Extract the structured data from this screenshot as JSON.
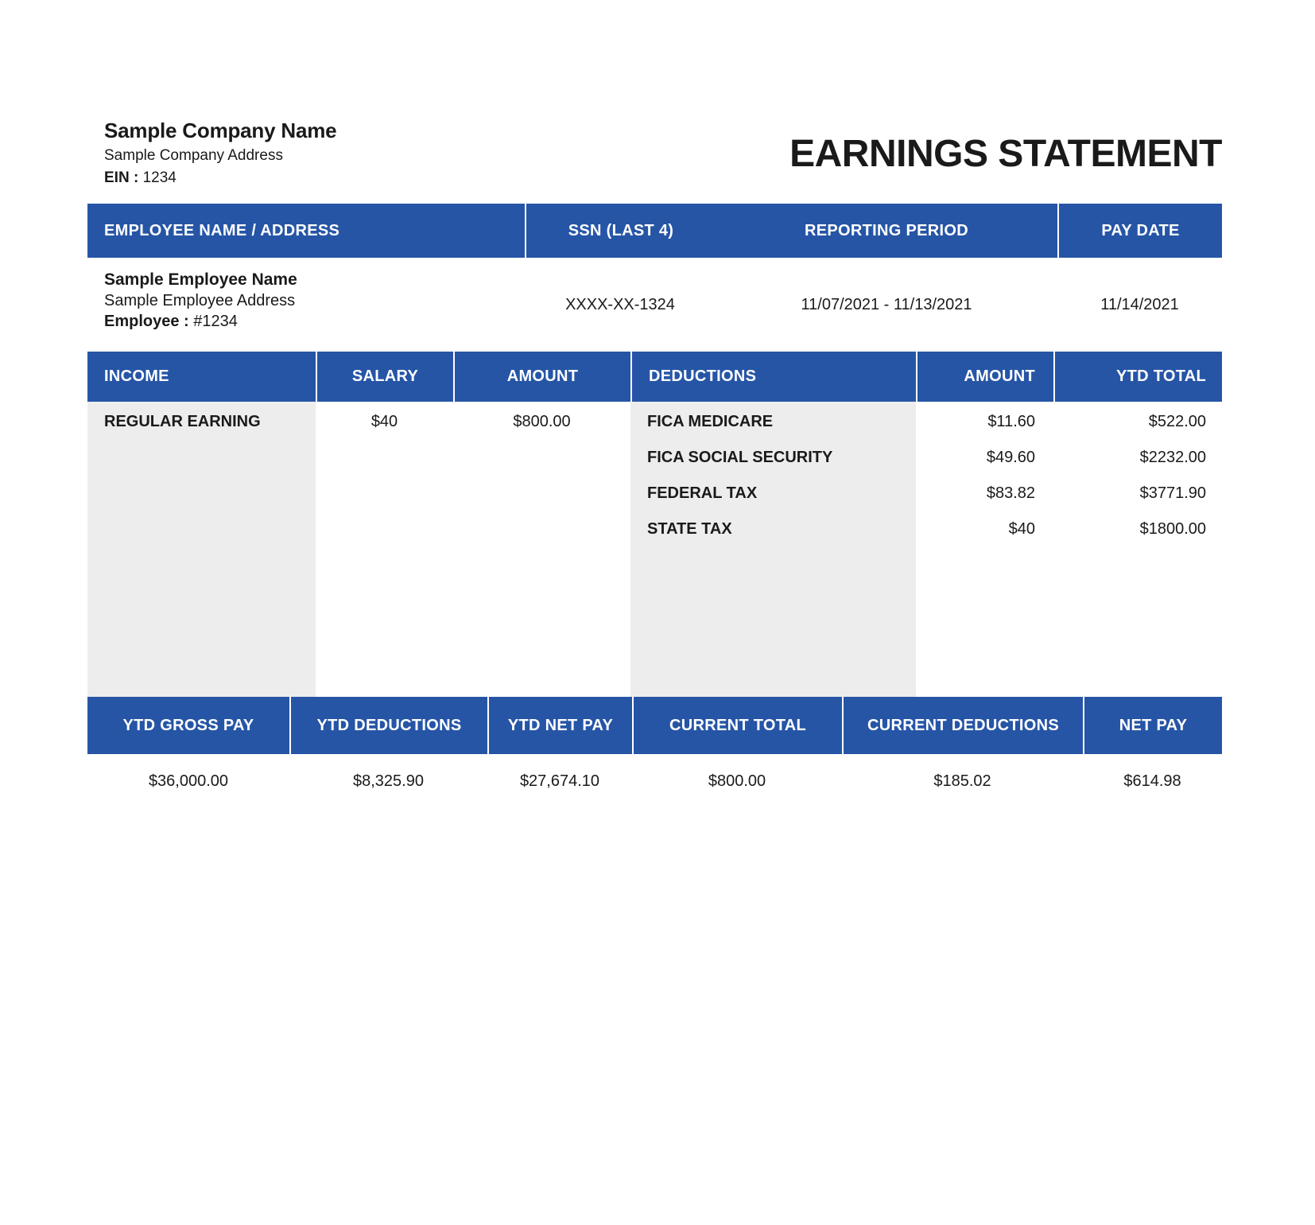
{
  "colors": {
    "header_blue": "#2655A6",
    "panel_gray": "#EDEDED",
    "text_dark": "#1A1A1A"
  },
  "company": {
    "name": "Sample Company Name",
    "address": "Sample Company Address",
    "ein_label": "EIN :",
    "ein_value": "1234"
  },
  "title": "EARNINGS STATEMENT",
  "employee_table": {
    "headers": {
      "name_address": "EMPLOYEE NAME / ADDRESS",
      "ssn": "SSN (LAST 4)",
      "reporting_period": "REPORTING PERIOD",
      "pay_date": "PAY DATE"
    },
    "employee": {
      "name": "Sample Employee Name",
      "address": "Sample Employee Address",
      "id_label": "Employee :",
      "id_value": "#1234",
      "ssn": "XXXX-XX-1324",
      "reporting_period": "11/07/2021 - 11/13/2021",
      "pay_date": "11/14/2021"
    }
  },
  "earnings_table": {
    "headers": {
      "income": "INCOME",
      "salary": "SALARY",
      "amount": "AMOUNT",
      "deductions": "DEDUCTIONS",
      "deductions_amount": "AMOUNT",
      "ytd_total": "YTD TOTAL"
    },
    "income_rows": [
      {
        "label": "REGULAR EARNING",
        "salary": "$40",
        "amount": "$800.00"
      }
    ],
    "deduction_rows": [
      {
        "label": "FICA MEDICARE",
        "amount": "$11.60",
        "ytd_total": "$522.00"
      },
      {
        "label": "FICA SOCIAL SECURITY",
        "amount": "$49.60",
        "ytd_total": "$2232.00"
      },
      {
        "label": "FEDERAL TAX",
        "amount": "$83.82",
        "ytd_total": "$3771.90"
      },
      {
        "label": "STATE TAX",
        "amount": "$40",
        "ytd_total": "$1800.00"
      }
    ]
  },
  "summary_table": {
    "columns": [
      {
        "label": "YTD GROSS PAY",
        "value": "$36,000.00"
      },
      {
        "label": "YTD DEDUCTIONS",
        "value": "$8,325.90"
      },
      {
        "label": "YTD NET PAY",
        "value": "$27,674.10"
      },
      {
        "label": "CURRENT TOTAL",
        "value": "$800.00"
      },
      {
        "label": "CURRENT DEDUCTIONS",
        "value": "$185.02"
      },
      {
        "label": "NET PAY",
        "value": "$614.98"
      }
    ]
  }
}
